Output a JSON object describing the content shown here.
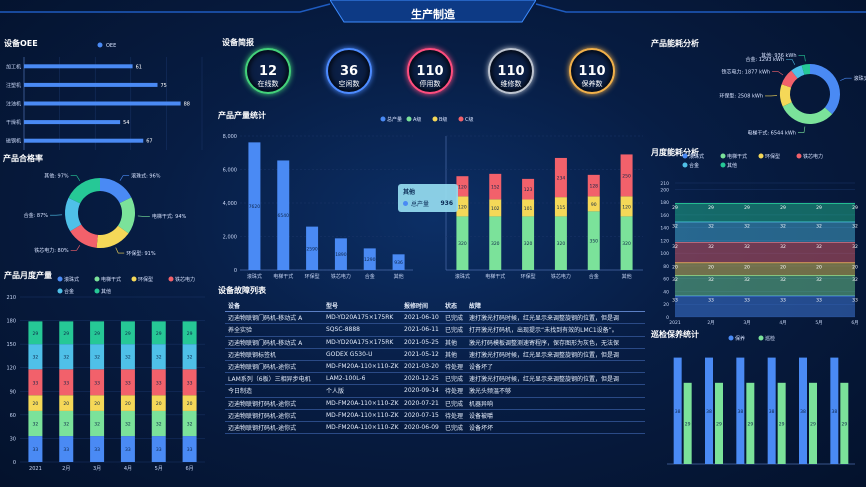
{
  "header": {
    "title": "生产制造"
  },
  "panels": {
    "oee": "设备OEE",
    "overview": "设备简报",
    "output": "产品产量统计",
    "qualified": "产品合格率",
    "monthly_output": "产品月度产量",
    "faults": "设备故障列表",
    "energy": "产品能耗分析",
    "monthly_energy": "月度能耗分析",
    "maintenance": "巡检保养统计"
  },
  "stats": [
    {
      "value": "12",
      "label": "在线数",
      "color": "#43d17a"
    },
    {
      "value": "36",
      "label": "空闲数",
      "color": "#4d8bff"
    },
    {
      "value": "110",
      "label": "停用数",
      "color": "#ff4d7e"
    },
    {
      "value": "110",
      "label": "维修数",
      "color": "#bcc3cf"
    },
    {
      "value": "110",
      "label": "保养数",
      "color": "#f1b04a"
    }
  ],
  "table": {
    "headers": [
      "设备",
      "型号",
      "报修时间",
      "状态",
      "故障"
    ],
    "rows": [
      [
        "迈迪物联钢门码机-移动式 A",
        "MD-YD20A175×175RK",
        "2021-06-10",
        "已完成",
        "速打激光打码时候，红光显示来调整旋钢的位置，但是调"
      ],
      [
        "养全实验",
        "SQSC-8888",
        "2021-06-11",
        "已完成",
        "打开激光打码机，出现提示“未找到有效的LMC1设备”。"
      ],
      [
        "迈迪物联钢门码机-移动式 A",
        "MD-YD20A175×175RK",
        "2021-05-25",
        "其他",
        "激光打码模板调整测速寄程序，保存图形为灰色，无法保"
      ],
      [
        "迈迪物联钢标签机",
        "GODEX G530-U",
        "2021-05-12",
        "其他",
        "速打激光打码时候，红光显示来调整旋钢的位置，但是调"
      ],
      [
        "迈迪物联钢门码机-途你式",
        "MD-FM20A-110×110-ZK",
        "2021-03-20",
        "待处理",
        "设备坏了"
      ],
      [
        "LAM系列（6板）三相异步电机",
        "LAM2-100L-6",
        "2020-12-25",
        "已完成",
        "速打激光打码时候，红光显示来调整旋钢的位置，但是调"
      ],
      [
        "今日制造",
        "个人版",
        "2020-09-14",
        "待处理",
        "激光头频温不够"
      ],
      [
        "迈迪物联钢打码机-途你式",
        "MD-FM20A-110×110-ZK",
        "2020-07-21",
        "已完成",
        "机器异响"
      ],
      [
        "迈迪物联钢打码机-途你式",
        "MD-FM20A-110×110-ZK",
        "2020-07-15",
        "待处理",
        "设备被嚼"
      ],
      [
        "迈迪物联钢打码机-途你式",
        "MD-FM20A-110×110-ZK",
        "2020-06-09",
        "已完成",
        "设备坏坏"
      ]
    ]
  },
  "tooltip": {
    "title": "其他",
    "label": "总产量",
    "value": "936"
  },
  "colors": {
    "blue": "#4a8af4",
    "green": "#7be29a",
    "yellow": "#f5d858",
    "red": "#f2616b",
    "cyan": "#4fc0e8",
    "teal": "#26c896"
  },
  "chart_data": [
    {
      "id": "oee",
      "type": "bar",
      "orientation": "horizontal",
      "categories": [
        "加工机",
        "注塑机",
        "注油机",
        "干燥机",
        "磁钢机"
      ],
      "values": [
        61,
        75,
        88,
        54,
        67
      ],
      "legend": [
        "OEE"
      ],
      "xlim": [
        0,
        100
      ],
      "xticks": [
        "0",
        "20",
        "40",
        "60",
        "80",
        "100"
      ]
    },
    {
      "id": "qualified",
      "type": "pie",
      "donut": true,
      "slices": [
        {
          "label": "滚珠式",
          "value": 96,
          "text": "滚珠式: 96%",
          "color": "#4a8af4"
        },
        {
          "label": "电梯干式",
          "value": 94,
          "text": "电梯干式: 94%",
          "color": "#7be29a"
        },
        {
          "label": "环保型",
          "value": 91,
          "text": "环保型: 91%",
          "color": "#f5d858"
        },
        {
          "label": "铁芯电力",
          "value": 80,
          "text": "铁芯电力: 80%",
          "color": "#f2616b"
        },
        {
          "label": "合金",
          "value": 87,
          "text": "合金: 87%",
          "color": "#4fc0e8"
        },
        {
          "label": "其他",
          "value": 97,
          "text": "其他: 97%",
          "color": "#26c896"
        }
      ]
    },
    {
      "id": "monthly_output",
      "type": "bar",
      "stacked": true,
      "categories": [
        "2021",
        "2月",
        "3月",
        "4月",
        "5月",
        "6月"
      ],
      "ylim": [
        0,
        210
      ],
      "yticks": [
        "0",
        "30",
        "60",
        "90",
        "120",
        "150",
        "180",
        "210"
      ],
      "series": [
        {
          "name": "滚珠式",
          "color": "#4a8af4",
          "values": [
            33,
            33,
            33,
            33,
            33,
            33
          ]
        },
        {
          "name": "电梯干式",
          "color": "#7be29a",
          "values": [
            32,
            32,
            32,
            32,
            32,
            32
          ]
        },
        {
          "name": "环保型",
          "color": "#f5d858",
          "values": [
            20,
            20,
            20,
            20,
            20,
            20
          ]
        },
        {
          "name": "铁芯电力",
          "color": "#f2616b",
          "values": [
            33,
            33,
            33,
            33,
            33,
            33
          ]
        },
        {
          "name": "合金",
          "color": "#4fc0e8",
          "values": [
            32,
            32,
            32,
            32,
            32,
            32
          ]
        },
        {
          "name": "其他",
          "color": "#26c896",
          "values": [
            29,
            29,
            29,
            29,
            29,
            29
          ]
        }
      ]
    },
    {
      "id": "total_output",
      "type": "bar",
      "categories": [
        "滚珠式",
        "电梯干式",
        "环保型",
        "铁芯电力",
        "合金",
        "其他"
      ],
      "values": [
        7620,
        6540,
        2590,
        1890,
        1290,
        936
      ],
      "labels": [
        "7620",
        "6540",
        "2590",
        "1890",
        "1290",
        "936"
      ],
      "ylim": [
        0,
        8000
      ],
      "yticks": [
        "0",
        "2,000",
        "4,000",
        "6,000",
        "8,000"
      ]
    },
    {
      "id": "category_output",
      "type": "bar",
      "stacked": true,
      "categories": [
        "滚珠式",
        "电梯干式",
        "环保型",
        "铁芯电力",
        "合金",
        "其他"
      ],
      "legend": [
        "总产量",
        "A级",
        "B级",
        "C级"
      ],
      "series": [
        {
          "name": "A级",
          "color": "#7be29a",
          "values": [
            320,
            320,
            320,
            320,
            350,
            320
          ]
        },
        {
          "name": "B级",
          "color": "#f5d858",
          "values": [
            120,
            102,
            101,
            115,
            90,
            120
          ]
        },
        {
          "name": "C级",
          "color": "#f2616b",
          "values": [
            120,
            152,
            123,
            234,
            128,
            250
          ]
        }
      ],
      "ylim": [
        0,
        800
      ]
    },
    {
      "id": "energy",
      "type": "pie",
      "donut": true,
      "slices": [
        {
          "label": "滚珠式",
          "value": 7638,
          "text": "滚珠式: 7638 kWh",
          "color": "#4a8af4"
        },
        {
          "label": "电梯干式",
          "value": 6544,
          "text": "电梯干式: 6544 kWh",
          "color": "#7be29a"
        },
        {
          "label": "环保型",
          "value": 2508,
          "text": "环保型: 2508 kWh",
          "color": "#f5d858"
        },
        {
          "label": "铁芯电力",
          "value": 1877,
          "text": "铁芯电力: 1877 kWh",
          "color": "#f2616b"
        },
        {
          "label": "合金",
          "value": 1293,
          "text": "合金: 1293 kWh",
          "color": "#4fc0e8"
        },
        {
          "label": "其他",
          "value": 936,
          "text": "其他: 936 kWh",
          "color": "#26c896"
        }
      ]
    },
    {
      "id": "monthly_energy",
      "type": "area",
      "stacked": true,
      "categories": [
        "2021",
        "2月",
        "3月",
        "4月",
        "5月",
        "6月"
      ],
      "ylim": [
        0,
        210
      ],
      "yticks": [
        "0",
        "20",
        "40",
        "60",
        "80",
        "100",
        "120",
        "140",
        "160",
        "180",
        "200",
        "210"
      ],
      "series": [
        {
          "name": "滚珠式",
          "color": "#4a8af4",
          "values": [
            33,
            33,
            33,
            33,
            33,
            33
          ]
        },
        {
          "name": "电梯干式",
          "color": "#7be29a",
          "values": [
            32,
            32,
            32,
            32,
            32,
            32
          ]
        },
        {
          "name": "环保型",
          "color": "#f5d858",
          "values": [
            20,
            20,
            20,
            20,
            20,
            20
          ]
        },
        {
          "name": "铁芯电力",
          "color": "#f2616b",
          "values": [
            32,
            32,
            32,
            32,
            32,
            32
          ]
        },
        {
          "name": "合金",
          "color": "#4fc0e8",
          "values": [
            32,
            32,
            32,
            32,
            32,
            32
          ]
        },
        {
          "name": "其他",
          "color": "#26c896",
          "values": [
            29,
            29,
            29,
            29,
            29,
            29
          ]
        }
      ]
    },
    {
      "id": "maintenance",
      "type": "bar",
      "categories": [
        "",
        "",
        "",
        "",
        "",
        ""
      ],
      "legend": [
        "保养",
        "巡检"
      ],
      "series": [
        {
          "name": "保养",
          "color": "#4a8af4",
          "values": [
            38,
            38,
            38,
            38,
            38,
            38
          ]
        },
        {
          "name": "巡检",
          "color": "#7be29a",
          "values": [
            29,
            29,
            29,
            29,
            29,
            29
          ]
        }
      ],
      "ylim": [
        0,
        40
      ]
    }
  ]
}
